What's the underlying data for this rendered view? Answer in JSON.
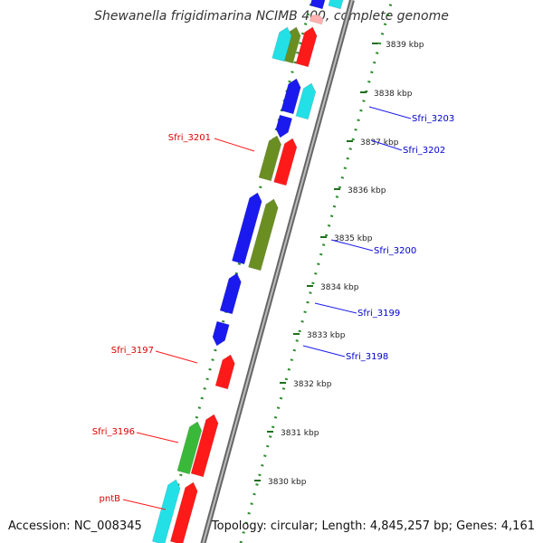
{
  "title": "Shewanella frigidimarina NCIMB 400, complete genome",
  "footer": {
    "accession": "Accession: NC_008345",
    "topology": "Topology: circular; Length: 4,845,257 bp; Genes: 4,161"
  },
  "colors": {
    "backbone": "#808080",
    "tick_track": "#2e8b2e",
    "kbp_tick": "#1f6e1f",
    "red": "#ff1a1a",
    "blue": "#1a1aee",
    "cyan": "#22e0e6",
    "olive": "#6b8e23",
    "green": "#3ab83a",
    "pink": "#ffb0b0",
    "label_red": "#dd0000",
    "label_blue": "#0000cc"
  },
  "kbp_marks": [
    "3839 kbp",
    "3838 kbp",
    "3837 kbp",
    "3836 kbp",
    "3835 kbp",
    "3834 kbp",
    "3833 kbp",
    "3832 kbp",
    "3831 kbp",
    "3830 kbp"
  ],
  "genes": [
    {
      "name": "Sfri_3203",
      "color": "blue"
    },
    {
      "name": "Sfri_3202",
      "color": "blue"
    },
    {
      "name": "Sfri_3201",
      "color": "red"
    },
    {
      "name": "Sfri_3200",
      "color": "blue"
    },
    {
      "name": "Sfri_3199",
      "color": "blue"
    },
    {
      "name": "Sfri_3198",
      "color": "blue"
    },
    {
      "name": "Sfri_3197",
      "color": "red"
    },
    {
      "name": "Sfri_3196",
      "color": "red"
    },
    {
      "name": "pntB",
      "color": "red"
    }
  ]
}
